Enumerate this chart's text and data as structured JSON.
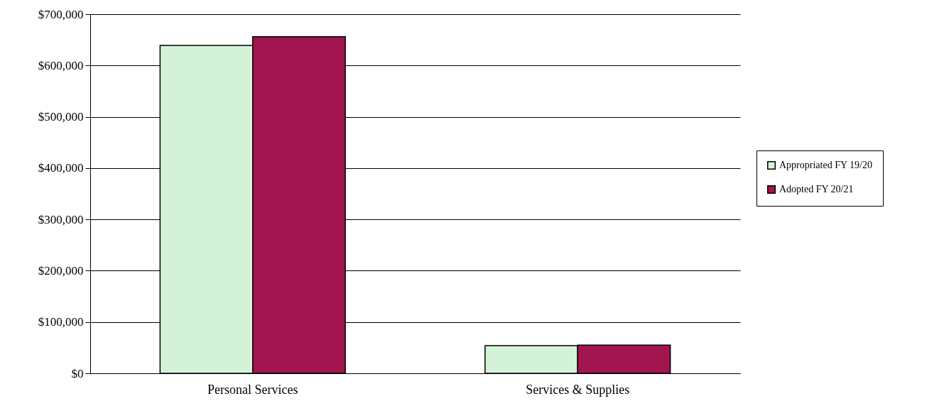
{
  "chart_data": {
    "type": "bar",
    "categories": [
      "Personal Services",
      "Services & Supplies"
    ],
    "series": [
      {
        "name": "Appropriated FY 19/20",
        "color": "#d4f2d8",
        "values": [
          639000,
          54000
        ]
      },
      {
        "name": "Adopted FY 20/21",
        "color": "#a3154f",
        "values": [
          656000,
          55000
        ]
      }
    ],
    "ylim": [
      0,
      700000
    ],
    "yticks": [
      {
        "value": 0,
        "label": "$0"
      },
      {
        "value": 100000,
        "label": "$100,000"
      },
      {
        "value": 200000,
        "label": "$200,000"
      },
      {
        "value": 300000,
        "label": "$300,000"
      },
      {
        "value": 400000,
        "label": "$400,000"
      },
      {
        "value": 500000,
        "label": "$500,000"
      },
      {
        "value": 600000,
        "label": "$600,000"
      },
      {
        "value": 700000,
        "label": "$700,000"
      }
    ],
    "grid": "y",
    "legend": "right"
  }
}
